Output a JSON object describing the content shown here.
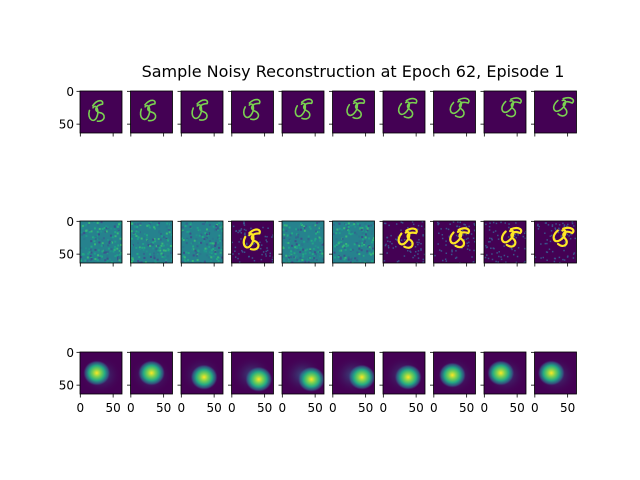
{
  "chart_data": {
    "type": "image-grid",
    "title": "Sample Noisy Reconstruction at Epoch 62, Episode 1",
    "xlim": [
      -0.5,
      63.5
    ],
    "ylim": [
      63.5,
      -0.5
    ],
    "xticks": [
      0,
      50
    ],
    "yticks": [
      0,
      50
    ]
  }
}
